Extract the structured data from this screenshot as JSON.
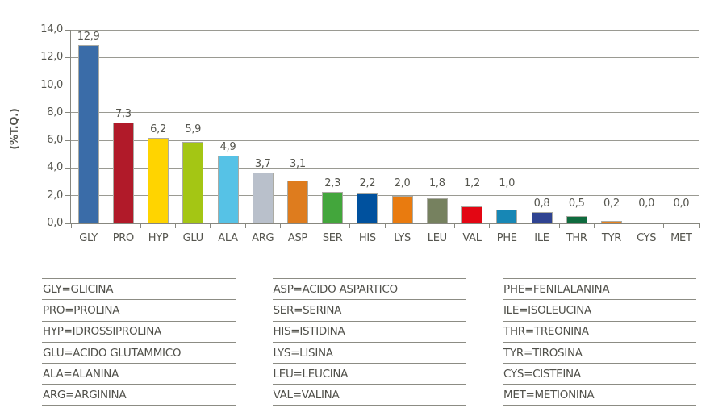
{
  "chart_data": {
    "type": "bar",
    "title": "",
    "xlabel": "",
    "ylabel": "(%T.Q.)",
    "ylim": [
      0,
      14
    ],
    "yticks": [
      0,
      2,
      4,
      6,
      8,
      10,
      12,
      14
    ],
    "ytick_labels": [
      "0,0",
      "2,0",
      "4,0",
      "6,0",
      "8,0",
      "10,0",
      "12,0",
      "14,0"
    ],
    "grid": true,
    "legend_position": "none",
    "categories": [
      "GLY",
      "PRO",
      "HYP",
      "GLU",
      "ALA",
      "ARG",
      "ASP",
      "SER",
      "HIS",
      "LYS",
      "LEU",
      "VAL",
      "PHE",
      "ILE",
      "THR",
      "TYR",
      "CYS",
      "MET"
    ],
    "values": [
      12.9,
      7.3,
      6.2,
      5.9,
      4.9,
      3.7,
      3.1,
      2.3,
      2.2,
      2.0,
      1.8,
      1.2,
      1.0,
      0.8,
      0.5,
      0.2,
      0.0,
      0.0
    ],
    "value_labels": [
      "12,9",
      "7,3",
      "6,2",
      "5,9",
      "4,9",
      "3,7",
      "3,1",
      "2,3",
      "2,2",
      "2,0",
      "1,8",
      "1,2",
      "1,0",
      "0,8",
      "0,5",
      "0,2",
      "0,0",
      "0,0"
    ],
    "bar_colors": [
      "#3a6ca8",
      "#b11a29",
      "#ffd400",
      "#a4c614",
      "#56c2e6",
      "#b9c0cb",
      "#de7c1e",
      "#43a63c",
      "#00519e",
      "#e97b0f",
      "#76815f",
      "#e30613",
      "#1787b5",
      "#2f4391",
      "#0f6b3e",
      "#e8821e",
      "#b9c0cb",
      "#b9c0cb"
    ],
    "label_align_groups": [
      [
        0
      ],
      [
        1
      ],
      [
        2,
        3
      ],
      [
        4
      ],
      [
        5,
        6
      ],
      [
        7,
        8,
        9,
        10,
        11,
        12
      ],
      [
        13,
        14,
        15,
        16,
        17
      ]
    ]
  },
  "legend": {
    "columns": [
      [
        "GLY=GLICINA",
        "PRO=PROLINA",
        "HYP=IDROSSIPROLINA",
        "GLU=ACIDO GLUTAMMICO",
        "ALA=ALANINA",
        "ARG=ARGININA"
      ],
      [
        "ASP=ACIDO ASPARTICO",
        "SER=SERINA",
        "HIS=ISTIDINA",
        "LYS=LISINA",
        "LEU=LEUCINA",
        "VAL=VALINA"
      ],
      [
        "PHE=FENILALANINA",
        "ILE=ISOLEUCINA",
        "THR=TREONINA",
        "TYR=TIROSINA",
        "CYS=CISTEINA",
        "MET=METIONINA"
      ]
    ]
  },
  "colors": {
    "grid": "#9a9a92",
    "axis": "#87877f",
    "text": "#55554e",
    "bar_border": "#ababa3",
    "legend_line": "#8c8c84"
  }
}
